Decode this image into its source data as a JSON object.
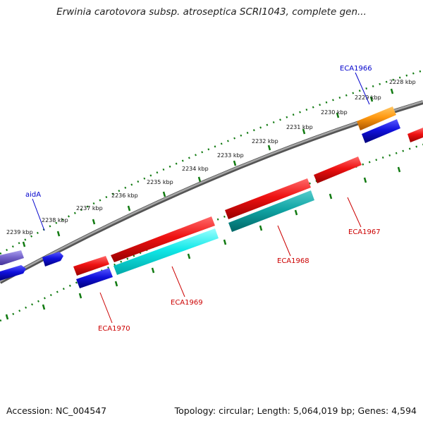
{
  "title": "Erwinia carotovora subsp. atroseptica SCRI1043, complete gen...",
  "footer": {
    "accession": "Accession: NC_004547",
    "summary": "Topology: circular; Length: 5,064,019 bp; Genes: 4,594"
  },
  "ticks": [
    "2228 kbp",
    "2229 kbp",
    "2230 kbp",
    "2231 kbp",
    "2232 kbp",
    "2233 kbp",
    "2234 kbp",
    "2235 kbp",
    "2236 kbp",
    "2237 kbp",
    "2238 kbp",
    "2239 kbp"
  ],
  "labels": {
    "ECA1966": "ECA1966",
    "aidA": "aidA",
    "ECA1967": "ECA1967",
    "ECA1968": "ECA1968",
    "ECA1969": "ECA1969",
    "ECA1970": "ECA1970"
  },
  "colors": {
    "backbone": "#8a8a8a",
    "tick": "#117a11",
    "red": "#ee1111",
    "blue": "#1111dd",
    "cyan": "#11e0e0",
    "teal": "#11aaaa",
    "orange": "#ff9911",
    "purple": "#7766cc",
    "labelRed": "#cc0000",
    "labelBlue": "#0000cc"
  }
}
